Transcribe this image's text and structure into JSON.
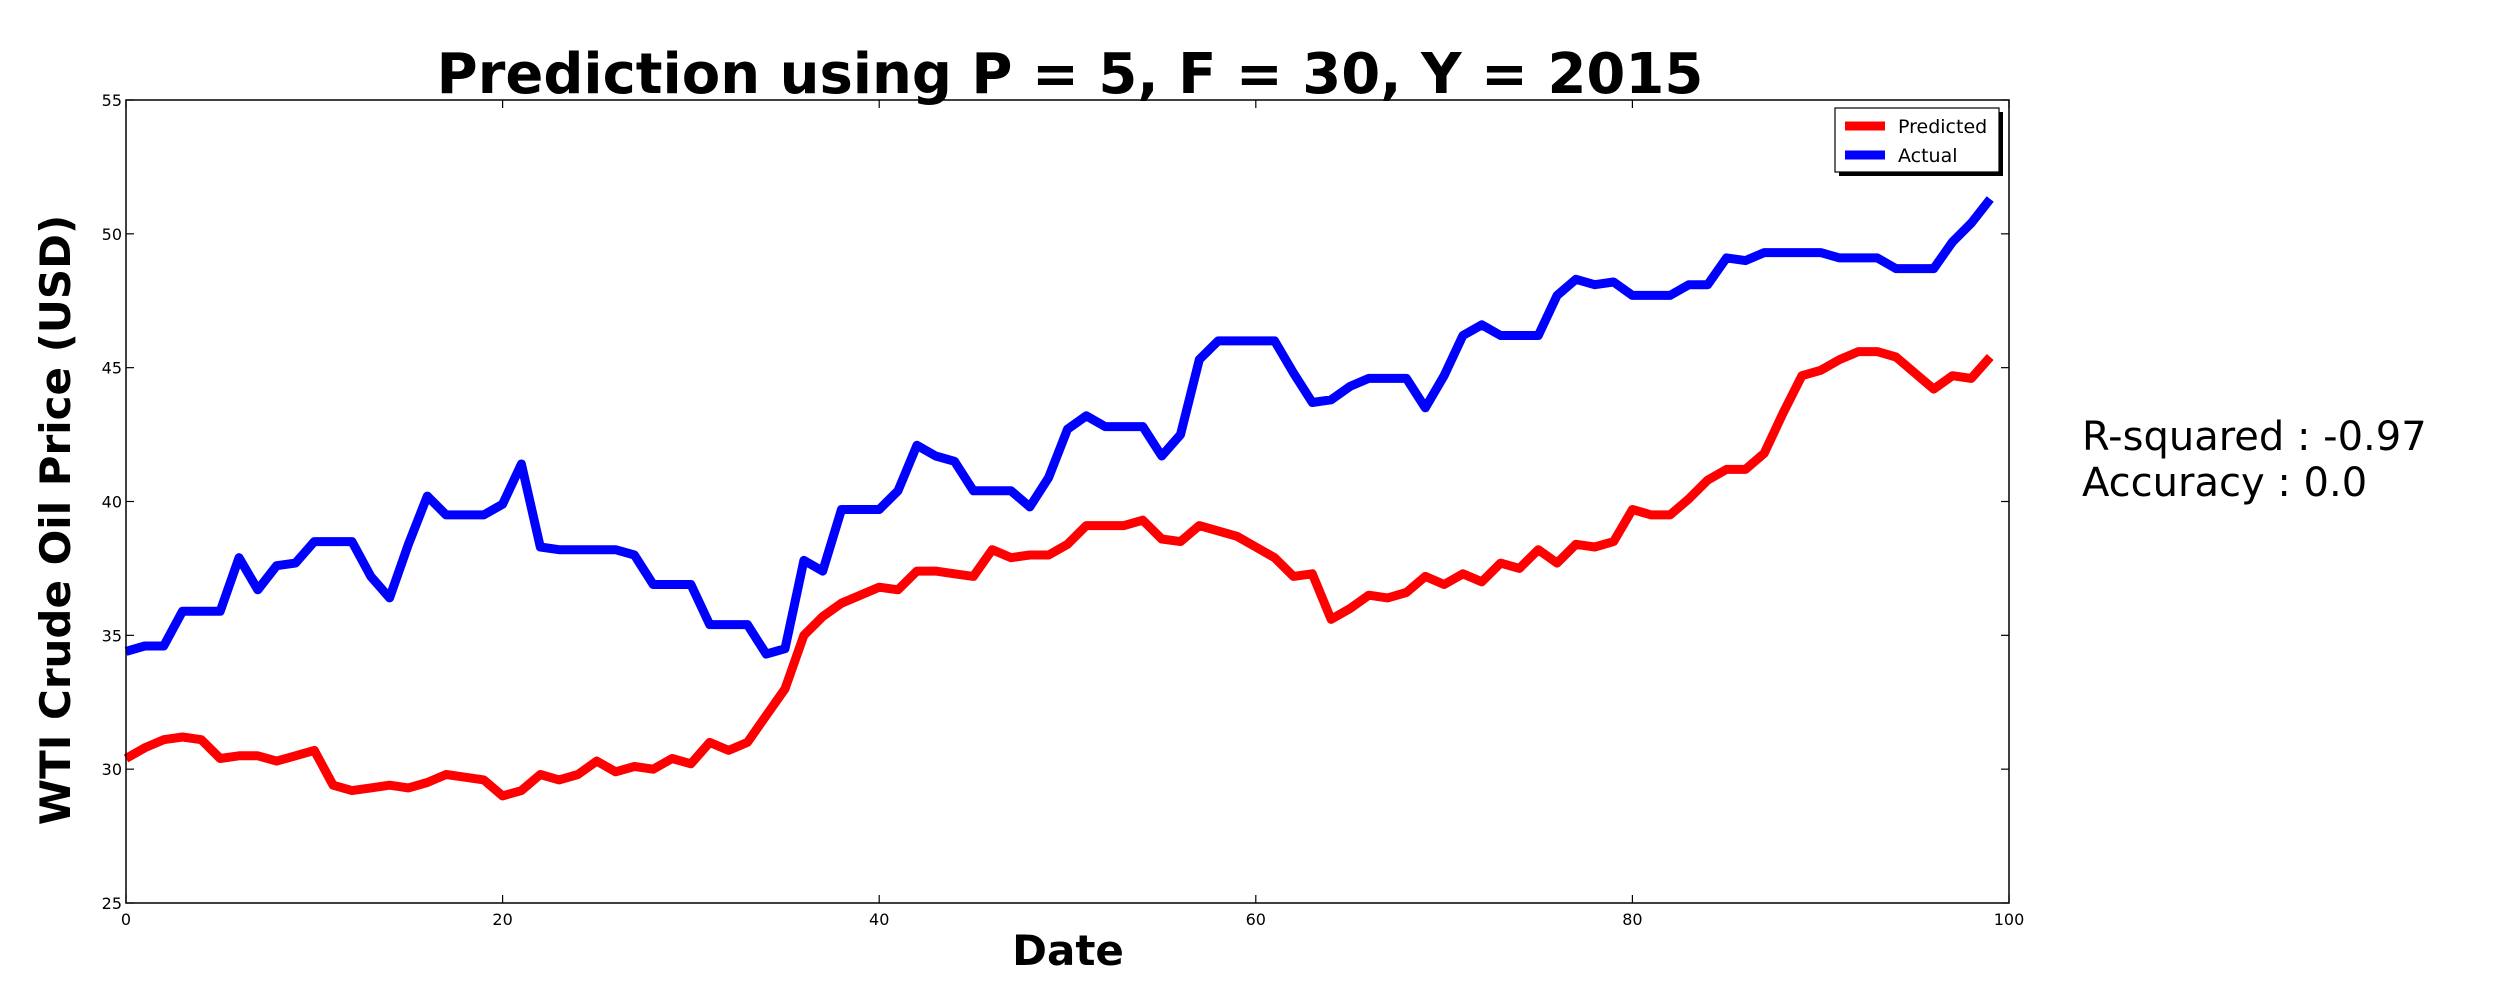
{
  "chart_data": {
    "type": "line",
    "title": "Prediction using P = 5, F = 30, Y = 2015",
    "xlabel": "Date",
    "ylabel": "WTI Crude Oil Price (USD)",
    "xlim": [
      0,
      100
    ],
    "ylim": [
      25,
      55
    ],
    "xticks": [
      0,
      20,
      40,
      60,
      80,
      100
    ],
    "yticks": [
      25,
      30,
      35,
      40,
      45,
      50,
      55
    ],
    "grid": false,
    "legend_position": "top-right",
    "series": [
      {
        "name": "Predicted",
        "color": "#ff0000",
        "x": [
          0,
          1,
          2,
          3,
          4,
          5,
          6,
          7,
          8,
          9,
          10,
          11,
          12,
          13,
          14,
          15,
          16,
          17,
          18,
          19,
          20,
          21,
          22,
          23,
          24,
          25,
          26,
          27,
          28,
          29,
          30,
          31,
          32,
          33,
          34,
          35,
          36,
          37,
          38,
          39,
          40,
          41,
          42,
          43,
          44,
          45,
          46,
          47,
          48,
          49,
          50,
          51,
          52,
          53,
          54,
          55,
          56,
          57,
          58,
          59,
          60,
          61,
          62,
          63,
          64,
          65,
          66,
          67,
          68,
          69,
          70,
          71,
          72,
          73,
          74,
          75,
          76,
          77,
          78,
          79,
          80,
          81,
          82,
          83,
          84,
          85,
          86,
          87,
          88,
          89,
          90,
          91,
          92,
          93,
          94,
          95,
          96,
          97,
          98,
          99
        ],
        "values": [
          30.4,
          30.8,
          31.1,
          31.2,
          31.1,
          30.4,
          30.5,
          30.5,
          30.3,
          30.5,
          30.7,
          29.4,
          29.2,
          29.3,
          29.4,
          29.3,
          29.5,
          29.8,
          29.7,
          29.6,
          29.0,
          29.2,
          29.8,
          29.6,
          29.8,
          30.3,
          29.9,
          30.1,
          30.0,
          30.4,
          30.2,
          31.0,
          30.7,
          31.0,
          32.0,
          33.0,
          35.0,
          35.7,
          36.2,
          36.5,
          36.8,
          36.7,
          37.4,
          37.4,
          37.3,
          37.2,
          38.2,
          37.9,
          38.0,
          38.0,
          38.4,
          39.1,
          39.1,
          39.1,
          39.3,
          38.6,
          38.5,
          39.1,
          38.9,
          38.7,
          38.3,
          37.9,
          37.2,
          37.3,
          35.6,
          36.0,
          36.5,
          36.4,
          36.6,
          37.2,
          36.9,
          37.3,
          37.0,
          37.7,
          37.5,
          38.2,
          37.7,
          38.4,
          38.3,
          38.5,
          39.7,
          39.5,
          39.5,
          40.1,
          40.8,
          41.2,
          41.2,
          41.8,
          43.3,
          44.7,
          44.9,
          45.3,
          45.6,
          45.6,
          45.4,
          44.8,
          44.2,
          44.7,
          44.6,
          45.4
        ]
      },
      {
        "name": "Actual",
        "color": "#0000ff",
        "x": [
          0,
          1,
          2,
          3,
          4,
          5,
          6,
          7,
          8,
          9,
          10,
          11,
          12,
          13,
          14,
          15,
          16,
          17,
          18,
          19,
          20,
          21,
          22,
          23,
          24,
          25,
          26,
          27,
          28,
          29,
          30,
          31,
          32,
          33,
          34,
          35,
          36,
          37,
          38,
          39,
          40,
          41,
          42,
          43,
          44,
          45,
          46,
          47,
          48,
          49,
          50,
          51,
          52,
          53,
          54,
          55,
          56,
          57,
          58,
          59,
          60,
          61,
          62,
          63,
          64,
          65,
          66,
          67,
          68,
          69,
          70,
          71,
          72,
          73,
          74,
          75,
          76,
          77,
          78,
          79,
          80,
          81,
          82,
          83,
          84,
          85,
          86,
          87,
          88,
          89,
          90,
          91,
          92,
          93,
          94,
          95,
          96,
          97,
          98,
          99
        ],
        "values": [
          34.4,
          34.6,
          34.6,
          35.9,
          35.9,
          35.9,
          37.9,
          36.7,
          37.6,
          37.7,
          38.5,
          38.5,
          38.5,
          37.2,
          36.4,
          38.4,
          40.2,
          39.5,
          39.5,
          39.5,
          39.9,
          41.4,
          38.3,
          38.2,
          38.2,
          38.2,
          38.2,
          38.0,
          36.9,
          36.9,
          36.9,
          35.4,
          35.4,
          35.4,
          34.3,
          34.5,
          37.8,
          37.4,
          39.7,
          39.7,
          39.7,
          40.4,
          42.1,
          41.7,
          41.5,
          40.4,
          40.4,
          40.4,
          39.8,
          40.9,
          42.7,
          43.2,
          42.8,
          42.8,
          42.8,
          41.7,
          42.5,
          45.3,
          46.0,
          46.0,
          46.0,
          46.0,
          44.8,
          43.7,
          43.8,
          44.3,
          44.6,
          44.6,
          44.6,
          43.5,
          44.7,
          46.2,
          46.6,
          46.2,
          46.2,
          46.2,
          47.7,
          48.3,
          48.1,
          48.2,
          47.7,
          47.7,
          47.7,
          48.1,
          48.1,
          49.1,
          49.0,
          49.3,
          49.3,
          49.3,
          49.3,
          49.1,
          49.1,
          49.1,
          48.7,
          48.7,
          48.7,
          49.7,
          50.4,
          51.3
        ]
      }
    ]
  },
  "annotation": {
    "r_squared": "R-squared : -0.97",
    "accuracy": "Accuracy : 0.0"
  }
}
